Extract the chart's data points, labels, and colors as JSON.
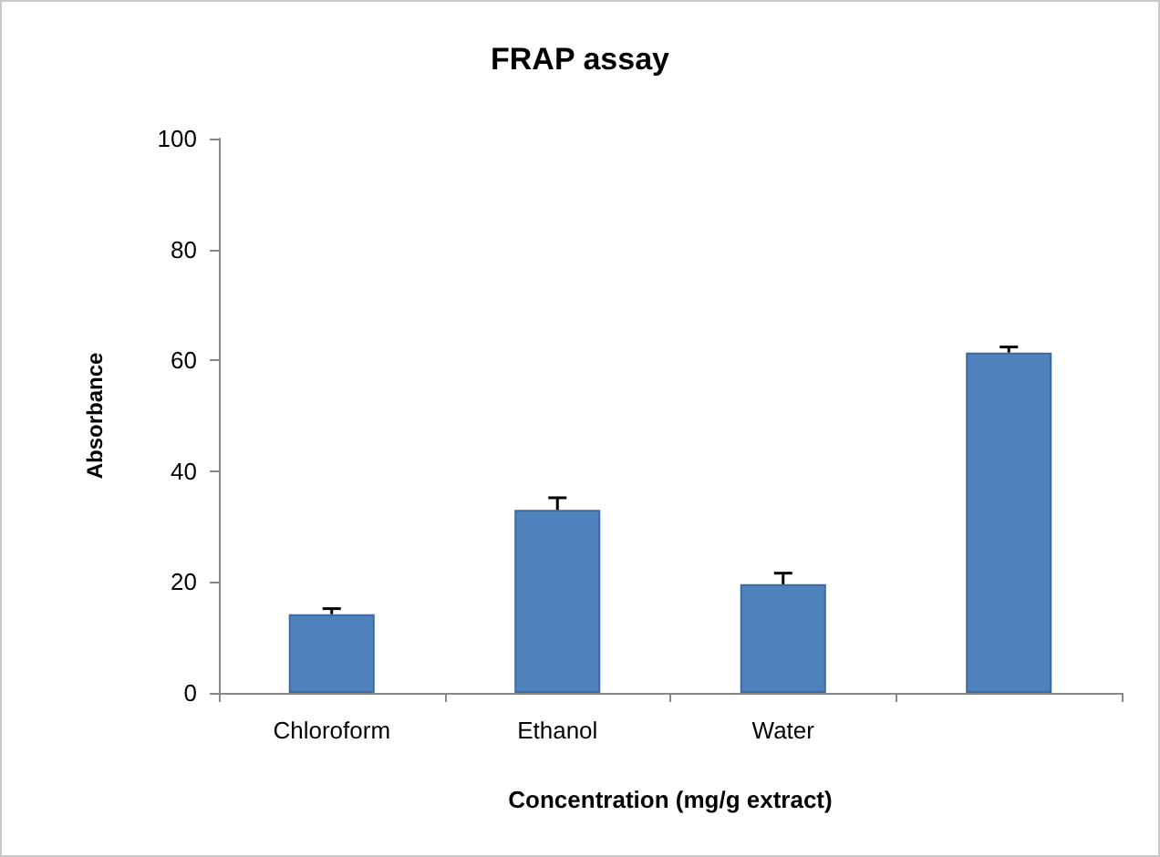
{
  "chart_data": {
    "type": "bar",
    "title": "FRAP assay",
    "xlabel": "Concentration (mg/g extract)",
    "ylabel": "Absorbance",
    "categories": [
      "Chloroform",
      "Ethanol",
      "Water",
      null
    ],
    "values": [
      14.2,
      33,
      19.6,
      61.4
    ],
    "errors": [
      [
        14.2,
        15.2
      ],
      [
        33,
        35.2
      ],
      [
        19.6,
        21.6
      ],
      [
        61.4,
        62.4
      ]
    ],
    "color": "#4f81bd",
    "ylim": [
      0,
      100
    ],
    "yticks": [
      0,
      20,
      40,
      60,
      80,
      100
    ],
    "grid": false
  }
}
